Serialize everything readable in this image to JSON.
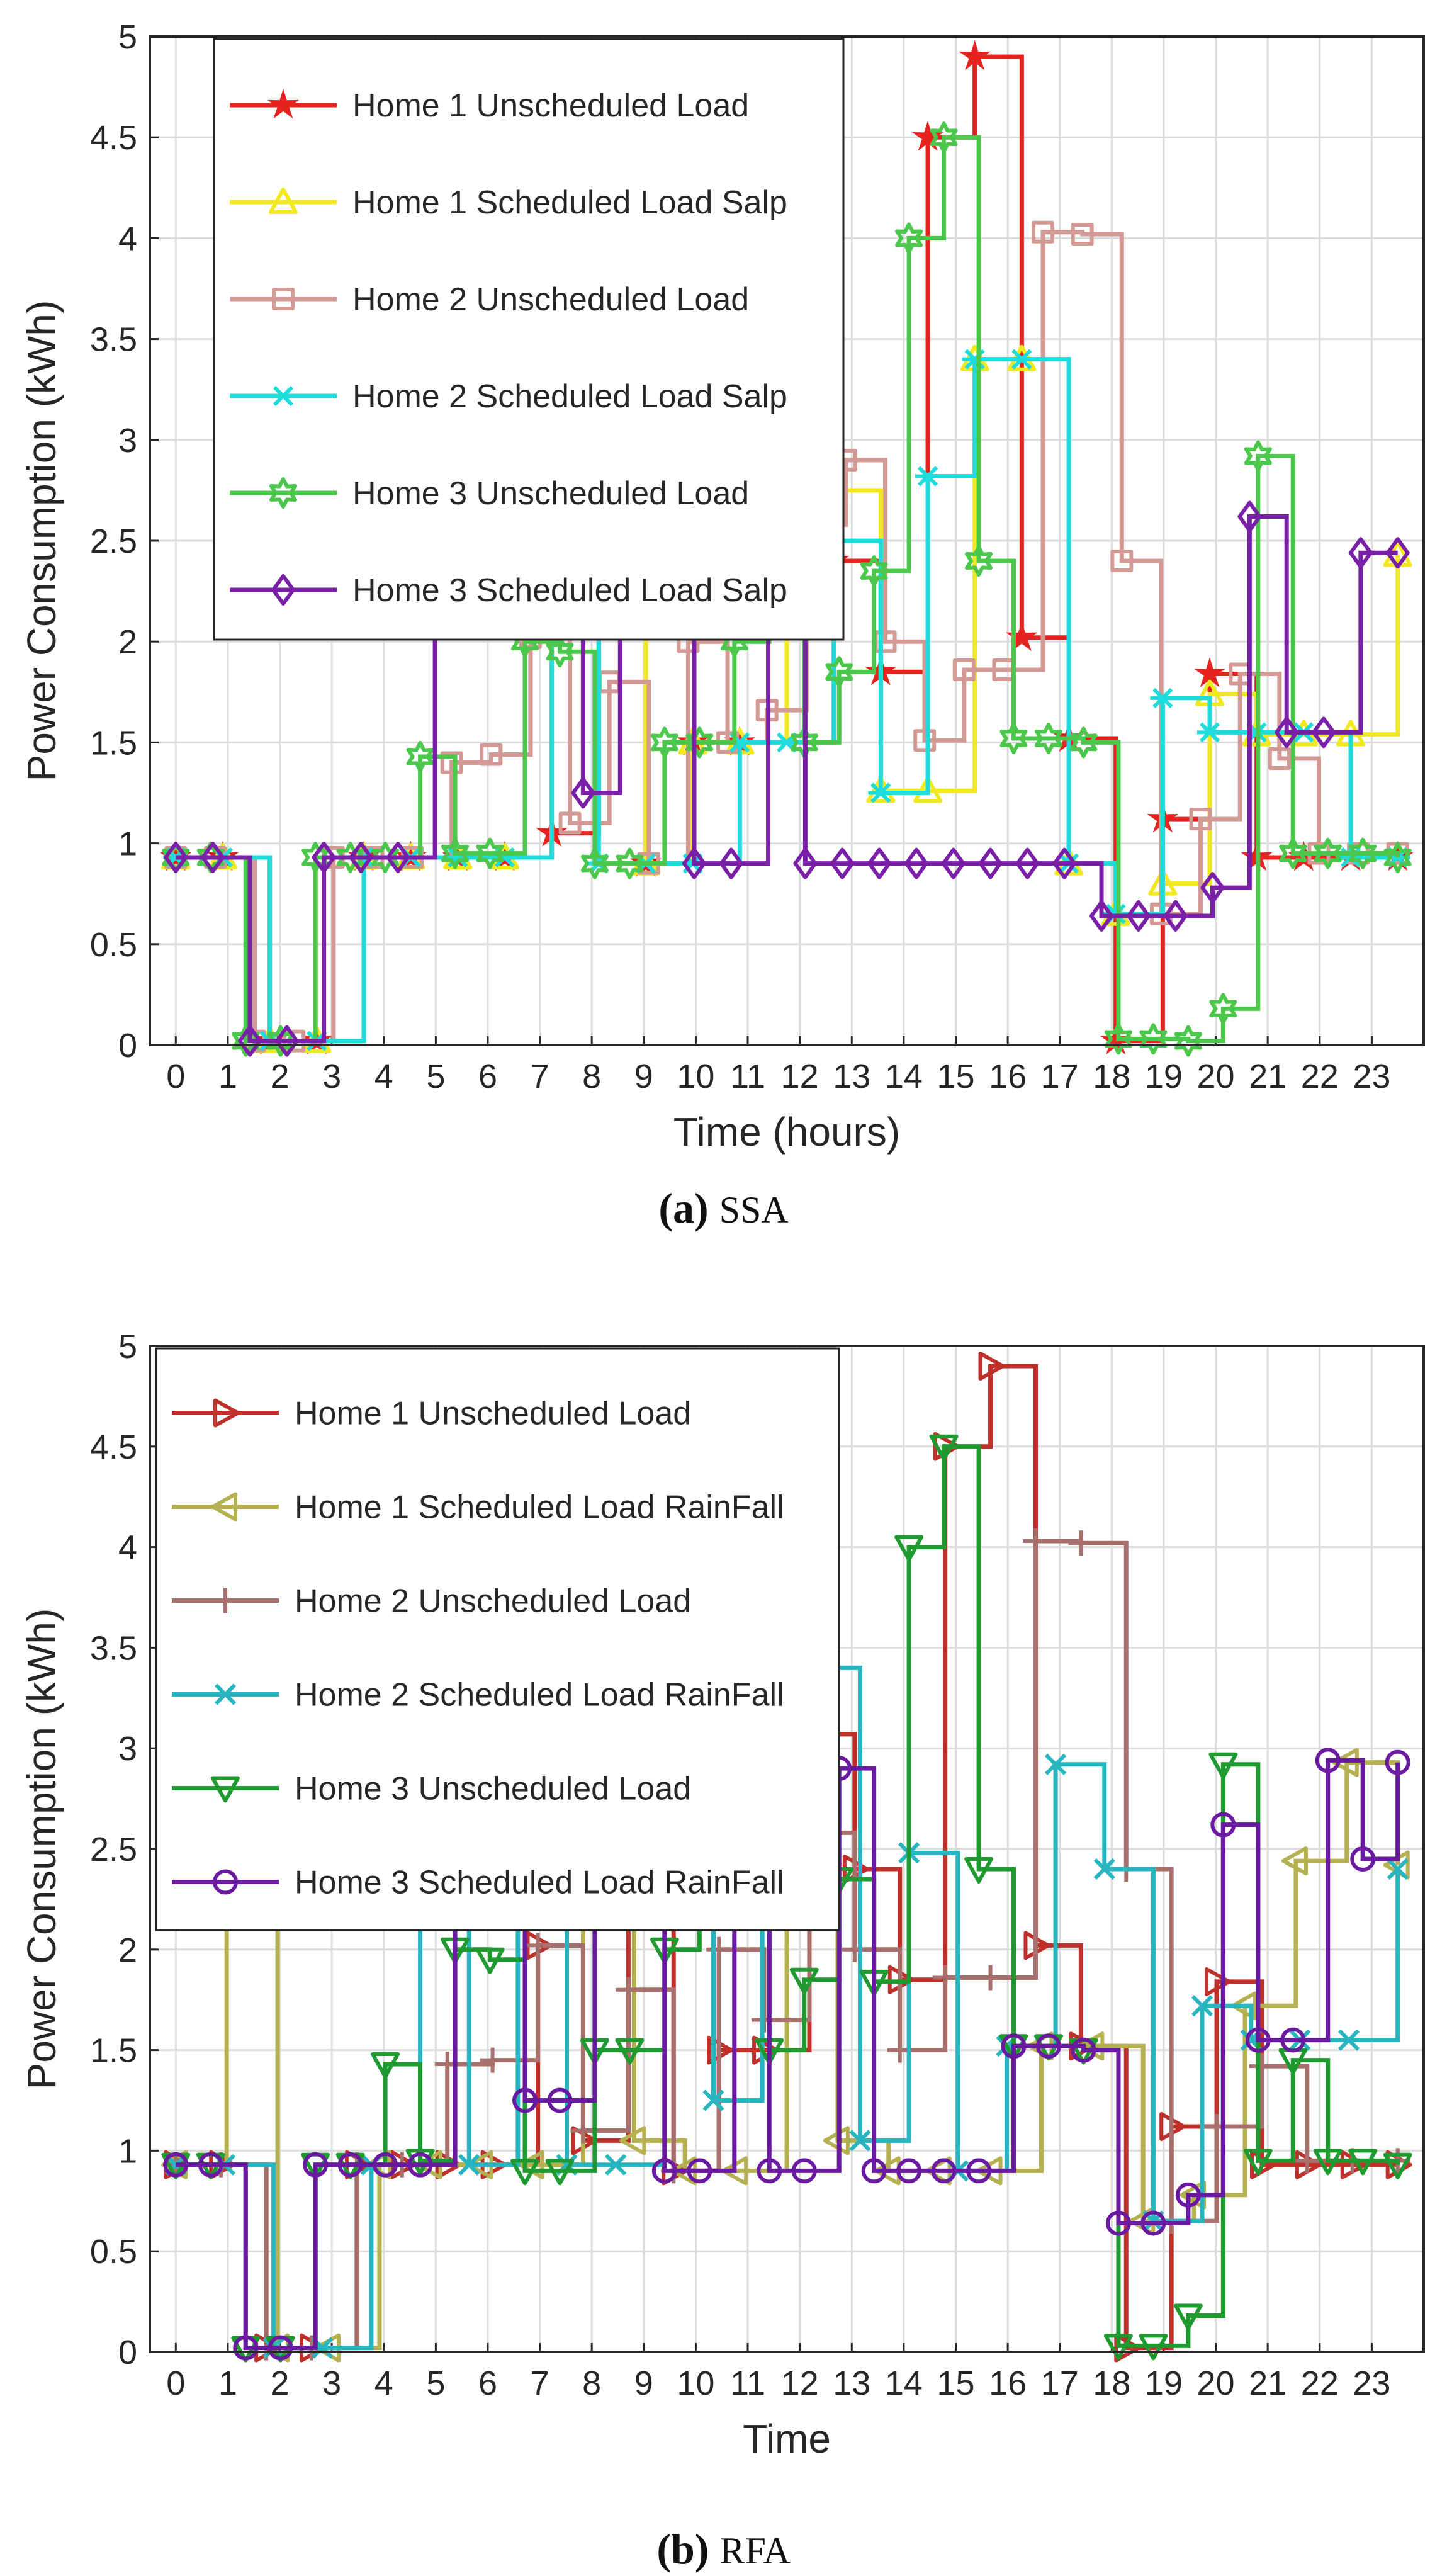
{
  "chart_data": [
    {
      "type": "line",
      "step": true,
      "caption_label": "(a)",
      "caption_name": "SSA",
      "xlabel": "Time (hours)",
      "ylabel": "Power Consumption (kWh)",
      "xlim": [
        -0.5,
        24
      ],
      "ylim": [
        0,
        5
      ],
      "xticks": [
        "0",
        "1",
        "2",
        "3",
        "4",
        "5",
        "6",
        "7",
        "8",
        "9",
        "10",
        "11",
        "12",
        "13",
        "14",
        "15",
        "16",
        "17",
        "18",
        "19",
        "20",
        "21",
        "22",
        "23"
      ],
      "yticks": [
        "0",
        "0.5",
        "1",
        "1.5",
        "2",
        "2.5",
        "3",
        "3.5",
        "4",
        "4.5",
        "5"
      ],
      "grid": true,
      "legend_position": "top-left",
      "series": [
        {
          "name": "Home 1 Unscheduled Load",
          "color": "#e5231f",
          "marker": "star",
          "values": [
            0.93,
            0.93,
            0.02,
            0.02,
            0.93,
            0.93,
            0.93,
            0.93,
            1.05,
            2.3,
            0.9,
            1.5,
            1.5,
            3.07,
            2.4,
            1.85,
            4.5,
            4.9,
            2.02,
            1.52,
            0.02,
            1.12,
            1.84,
            0.93,
            0.93,
            0.93,
            0.93
          ]
        },
        {
          "name": "Home 1 Scheduled Load Salp",
          "color": "#f1e81f",
          "marker": "triangle-up",
          "values": [
            0.93,
            0.93,
            0.02,
            0.02,
            0.93,
            0.93,
            0.93,
            0.93,
            2.55,
            2.5,
            0.9,
            1.5,
            1.5,
            2.57,
            2.75,
            1.26,
            1.26,
            3.4,
            3.4,
            0.9,
            0.65,
            0.8,
            1.74,
            1.54,
            1.54,
            1.54,
            2.43
          ]
        },
        {
          "name": "Home 2 Unscheduled Load",
          "color": "#d39a95",
          "marker": "square",
          "values": [
            0.93,
            0.93,
            0.02,
            0.02,
            0.93,
            0.93,
            0.93,
            1.4,
            1.44,
            2.02,
            1.1,
            1.8,
            0.9,
            2.0,
            1.5,
            1.66,
            2.58,
            2.9,
            2.0,
            1.51,
            1.86,
            1.86,
            4.03,
            4.02,
            2.4,
            0.65,
            1.12,
            1.84,
            1.42,
            0.95,
            0.95,
            0.95
          ]
        },
        {
          "name": "Home 2 Scheduled Load Salp",
          "color": "#1fdcdc",
          "marker": "asterisk",
          "values": [
            0.93,
            0.93,
            0.02,
            0.02,
            0.93,
            0.93,
            0.93,
            0.93,
            2.5,
            0.9,
            0.9,
            0.9,
            1.5,
            1.5,
            2.5,
            1.25,
            2.82,
            3.4,
            3.4,
            0.9,
            0.65,
            1.72,
            1.55,
            1.55,
            1.55,
            0.93,
            0.93
          ]
        },
        {
          "name": "Home 3 Unscheduled Load",
          "color": "#4bc84b",
          "marker": "hexagram",
          "values": [
            0.93,
            0.93,
            0.02,
            0.02,
            0.93,
            0.93,
            0.93,
            1.43,
            0.95,
            0.95,
            2.0,
            1.95,
            0.9,
            0.9,
            1.5,
            1.5,
            2.0,
            2.9,
            1.5,
            1.85,
            2.35,
            4.0,
            4.5,
            2.4,
            1.52,
            1.52,
            1.5,
            0.03,
            0.03,
            0.02,
            0.18,
            2.92,
            0.95,
            0.95,
            0.95,
            0.93
          ]
        },
        {
          "name": "Home 3 Scheduled Load Salp",
          "color": "#7a1fa8",
          "marker": "diamond",
          "values": [
            0.93,
            0.93,
            0.02,
            0.02,
            0.93,
            0.93,
            0.93,
            2.53,
            2.53,
            2.5,
            2.75,
            1.25,
            3.4,
            3.4,
            0.9,
            0.9,
            2.73,
            0.9,
            0.9,
            0.9,
            0.9,
            0.9,
            0.9,
            0.9,
            0.9,
            0.64,
            0.64,
            0.64,
            0.78,
            2.62,
            1.55,
            1.55,
            2.44,
            2.44
          ]
        }
      ]
    },
    {
      "type": "line",
      "step": true,
      "caption_label": "(b)",
      "caption_name": "RFA",
      "xlabel": "Time",
      "ylabel": "Power Consumption (kWh)",
      "xlim": [
        -0.5,
        24
      ],
      "ylim": [
        0,
        5
      ],
      "xticks": [
        "0",
        "1",
        "2",
        "3",
        "4",
        "5",
        "6",
        "7",
        "8",
        "9",
        "10",
        "11",
        "12",
        "13",
        "14",
        "15",
        "16",
        "17",
        "18",
        "19",
        "20",
        "21",
        "22",
        "23"
      ],
      "yticks": [
        "0",
        "0.5",
        "1",
        "1.5",
        "2",
        "2.5",
        "3",
        "3.5",
        "4",
        "4.5",
        "5"
      ],
      "grid": true,
      "legend_position": "top-left",
      "series": [
        {
          "name": "Home 1 Unscheduled Load",
          "color": "#c0302b",
          "marker": "triangle-right",
          "values": [
            0.93,
            0.93,
            0.02,
            0.02,
            0.93,
            0.93,
            0.93,
            0.93,
            2.02,
            1.05,
            2.3,
            0.9,
            1.5,
            1.5,
            3.07,
            2.4,
            1.85,
            4.5,
            4.9,
            2.02,
            1.52,
            0.02,
            1.12,
            1.84,
            0.93,
            0.93,
            0.93,
            0.93
          ]
        },
        {
          "name": "Home 1 Scheduled Load RainFall",
          "color": "#b5b050",
          "marker": "triangle-left",
          "values": [
            0.93,
            2.52,
            0.02,
            0.02,
            0.93,
            0.93,
            0.93,
            0.93,
            2.52,
            1.05,
            0.9,
            0.9,
            2.48,
            1.05,
            0.9,
            0.9,
            0.9,
            1.52,
            1.52,
            0.65,
            0.78,
            1.72,
            2.44,
            2.93,
            2.42
          ]
        },
        {
          "name": "Home 2 Unscheduled Load",
          "color": "#a8706c",
          "marker": "plus",
          "values": [
            0.93,
            0.93,
            0.02,
            0.02,
            0.93,
            0.93,
            1.43,
            1.45,
            2.02,
            1.1,
            1.8,
            0.9,
            2.0,
            1.65,
            2.58,
            2.0,
            1.5,
            1.86,
            1.86,
            4.03,
            4.02,
            2.4,
            0.65,
            1.12,
            1.42,
            0.95,
            0.95,
            0.95
          ]
        },
        {
          "name": "Home 2 Scheduled Load RainFall",
          "color": "#27b5c0",
          "marker": "x",
          "values": [
            0.93,
            0.93,
            0.02,
            0.02,
            0.93,
            2.5,
            0.93,
            2.5,
            0.93,
            0.93,
            2.65,
            1.25,
            3.4,
            3.4,
            1.05,
            2.48,
            0.9,
            1.52,
            2.92,
            2.4,
            0.65,
            1.72,
            1.55,
            1.55,
            1.55,
            2.4
          ]
        },
        {
          "name": "Home 3 Unscheduled Load",
          "color": "#1f9a30",
          "marker": "triangle-down",
          "values": [
            0.93,
            0.93,
            0.02,
            0.02,
            0.93,
            0.93,
            1.43,
            0.95,
            2.0,
            1.95,
            0.9,
            0.9,
            1.5,
            1.5,
            2.0,
            2.72,
            2.9,
            1.5,
            1.85,
            2.35,
            1.84,
            4.0,
            4.5,
            2.4,
            1.52,
            1.52,
            1.5,
            0.03,
            0.03,
            0.18,
            2.92,
            0.95,
            1.45,
            0.95,
            0.95,
            0.93
          ]
        },
        {
          "name": "Home 3 Scheduled Load RainFall",
          "color": "#6a1aa0",
          "marker": "circle",
          "values": [
            0.93,
            0.93,
            0.02,
            0.02,
            0.93,
            0.93,
            0.93,
            0.93,
            2.5,
            2.5,
            1.25,
            1.25,
            3.4,
            3.4,
            0.9,
            0.9,
            2.63,
            0.9,
            0.9,
            2.9,
            0.9,
            0.9,
            0.9,
            0.9,
            1.52,
            1.52,
            1.5,
            0.64,
            0.64,
            0.78,
            2.62,
            1.55,
            1.55,
            2.94,
            2.45,
            2.93
          ]
        }
      ]
    }
  ]
}
